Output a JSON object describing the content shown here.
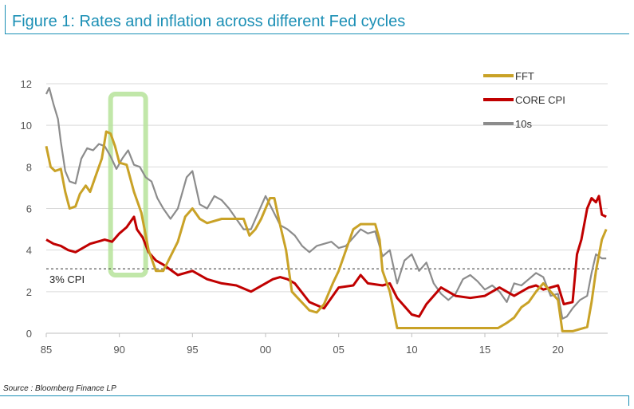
{
  "figure": {
    "title": "Figure 1: Rates and inflation across different Fed cycles",
    "source": "Source : Bloomberg Finance LP"
  },
  "chart_data": {
    "type": "line",
    "title": "Figure 1: Rates and inflation across different Fed cycles",
    "xlabel": "",
    "ylabel": "",
    "xlim": [
      1985,
      2023.4
    ],
    "ylim": [
      0,
      12
    ],
    "x_ticks": [
      1985,
      1990,
      1995,
      2000,
      2005,
      2010,
      2015,
      2020
    ],
    "x_tick_labels": [
      "85",
      "90",
      "95",
      "00",
      "05",
      "10",
      "15",
      "20"
    ],
    "y_ticks": [
      0,
      2,
      4,
      6,
      8,
      10,
      12
    ],
    "grid": true,
    "legend_position": "top-right",
    "reference_line": {
      "y": 3.1,
      "label": "3% CPI"
    },
    "highlight_box": {
      "x_start": 1989.4,
      "x_end": 1991.8,
      "y_start": 2.8,
      "y_end": 11.5
    },
    "series": [
      {
        "name": "FFT",
        "color": "#c9a227",
        "x": [
          1985.0,
          1985.3,
          1985.6,
          1986.0,
          1986.3,
          1986.6,
          1987.0,
          1987.3,
          1987.7,
          1988.0,
          1988.4,
          1988.8,
          1989.1,
          1989.4,
          1989.7,
          1990.0,
          1990.5,
          1991.0,
          1991.5,
          1992.0,
          1992.5,
          1993.0,
          1994.0,
          1994.5,
          1995.0,
          1995.5,
          1996.0,
          1997.0,
          1998.5,
          1998.9,
          1999.3,
          1999.7,
          2000.3,
          2000.6,
          2001.0,
          2001.4,
          2001.8,
          2002.2,
          2003.0,
          2003.5,
          2004.0,
          2004.6,
          2005.0,
          2005.5,
          2006.0,
          2006.5,
          2007.5,
          2007.8,
          2008.0,
          2008.5,
          2009.0,
          2010.0,
          2012.0,
          2014.0,
          2015.9,
          2016.5,
          2017.0,
          2017.5,
          2018.0,
          2018.5,
          2019.0,
          2019.5,
          2020.0,
          2020.3,
          2021.0,
          2022.0,
          2022.3,
          2022.6,
          2023.0,
          2023.3
        ],
        "y": [
          9.0,
          8.0,
          7.8,
          7.9,
          6.8,
          6.0,
          6.1,
          6.7,
          7.1,
          6.8,
          7.6,
          8.4,
          9.7,
          9.6,
          9.0,
          8.2,
          8.1,
          6.8,
          5.8,
          4.0,
          3.0,
          3.0,
          4.4,
          5.6,
          6.0,
          5.5,
          5.3,
          5.5,
          5.5,
          4.7,
          5.0,
          5.5,
          6.5,
          6.5,
          5.2,
          4.0,
          2.0,
          1.7,
          1.1,
          1.0,
          1.4,
          2.4,
          3.0,
          4.0,
          5.0,
          5.25,
          5.25,
          4.5,
          3.0,
          2.0,
          0.25,
          0.25,
          0.25,
          0.25,
          0.25,
          0.5,
          0.75,
          1.25,
          1.5,
          2.0,
          2.4,
          2.0,
          1.6,
          0.1,
          0.1,
          0.3,
          1.5,
          3.0,
          4.5,
          5.0
        ]
      },
      {
        "name": "CORE CPI",
        "color": "#c00000",
        "x": [
          1985.0,
          1985.5,
          1986.0,
          1986.5,
          1987.0,
          1987.5,
          1988.0,
          1988.5,
          1989.0,
          1989.5,
          1990.0,
          1990.5,
          1991.0,
          1991.2,
          1991.6,
          1992.0,
          1992.5,
          1993.0,
          1994.0,
          1995.0,
          1996.0,
          1997.0,
          1998.0,
          1999.0,
          2000.0,
          2000.5,
          2001.0,
          2001.5,
          2002.0,
          2003.0,
          2004.0,
          2005.0,
          2006.0,
          2006.5,
          2007.0,
          2008.0,
          2008.5,
          2009.0,
          2010.0,
          2010.5,
          2011.0,
          2012.0,
          2013.0,
          2014.0,
          2015.0,
          2016.0,
          2017.0,
          2018.0,
          2018.5,
          2019.0,
          2020.0,
          2020.4,
          2021.0,
          2021.3,
          2021.6,
          2022.0,
          2022.3,
          2022.6,
          2022.8,
          2023.0,
          2023.3
        ],
        "y": [
          4.5,
          4.3,
          4.2,
          4.0,
          3.9,
          4.1,
          4.3,
          4.4,
          4.5,
          4.4,
          4.8,
          5.1,
          5.6,
          5.0,
          4.6,
          3.9,
          3.5,
          3.3,
          2.8,
          3.0,
          2.6,
          2.4,
          2.3,
          2.0,
          2.4,
          2.6,
          2.7,
          2.6,
          2.4,
          1.5,
          1.2,
          2.2,
          2.3,
          2.8,
          2.4,
          2.3,
          2.4,
          1.7,
          0.9,
          0.8,
          1.4,
          2.2,
          1.8,
          1.7,
          1.8,
          2.2,
          1.8,
          2.2,
          2.3,
          2.1,
          2.3,
          1.4,
          1.5,
          3.8,
          4.5,
          6.0,
          6.5,
          6.3,
          6.6,
          5.7,
          5.6
        ]
      },
      {
        "name": "10s",
        "color": "#8c8c8c",
        "x": [
          1985.0,
          1985.2,
          1985.5,
          1985.8,
          1986.0,
          1986.3,
          1986.6,
          1987.0,
          1987.4,
          1987.8,
          1988.2,
          1988.6,
          1989.0,
          1989.4,
          1989.8,
          1990.2,
          1990.6,
          1991.0,
          1991.4,
          1991.8,
          1992.2,
          1992.6,
          1993.0,
          1993.5,
          1994.0,
          1994.6,
          1995.0,
          1995.5,
          1996.0,
          1996.5,
          1997.0,
          1997.5,
          1998.0,
          1998.5,
          1999.0,
          1999.5,
          2000.0,
          2000.5,
          2001.0,
          2001.5,
          2002.0,
          2002.5,
          2003.0,
          2003.5,
          2004.0,
          2004.5,
          2005.0,
          2005.5,
          2006.0,
          2006.5,
          2007.0,
          2007.5,
          2008.0,
          2008.5,
          2009.0,
          2009.5,
          2010.0,
          2010.5,
          2011.0,
          2011.5,
          2012.0,
          2012.5,
          2013.0,
          2013.5,
          2014.0,
          2014.5,
          2015.0,
          2015.5,
          2016.0,
          2016.5,
          2017.0,
          2017.5,
          2018.0,
          2018.5,
          2019.0,
          2019.5,
          2020.0,
          2020.3,
          2020.6,
          2021.0,
          2021.5,
          2022.0,
          2022.3,
          2022.6,
          2023.0,
          2023.3
        ],
        "y": [
          11.5,
          11.8,
          11.0,
          10.3,
          9.2,
          7.8,
          7.3,
          7.2,
          8.4,
          8.9,
          8.8,
          9.1,
          9.0,
          8.5,
          7.9,
          8.4,
          8.8,
          8.1,
          8.0,
          7.5,
          7.3,
          6.5,
          6.0,
          5.5,
          6.0,
          7.5,
          7.8,
          6.2,
          6.0,
          6.6,
          6.4,
          6.0,
          5.5,
          5.0,
          5.0,
          5.8,
          6.6,
          5.9,
          5.2,
          5.0,
          4.7,
          4.2,
          3.9,
          4.2,
          4.3,
          4.4,
          4.1,
          4.2,
          4.6,
          5.0,
          4.8,
          4.9,
          3.7,
          4.0,
          2.4,
          3.5,
          3.8,
          3.0,
          3.4,
          2.4,
          1.9,
          1.6,
          1.9,
          2.6,
          2.8,
          2.5,
          2.1,
          2.3,
          2.0,
          1.5,
          2.4,
          2.3,
          2.6,
          2.9,
          2.7,
          1.8,
          1.9,
          0.7,
          0.8,
          1.2,
          1.6,
          1.8,
          2.9,
          3.8,
          3.6,
          3.6
        ]
      }
    ]
  }
}
